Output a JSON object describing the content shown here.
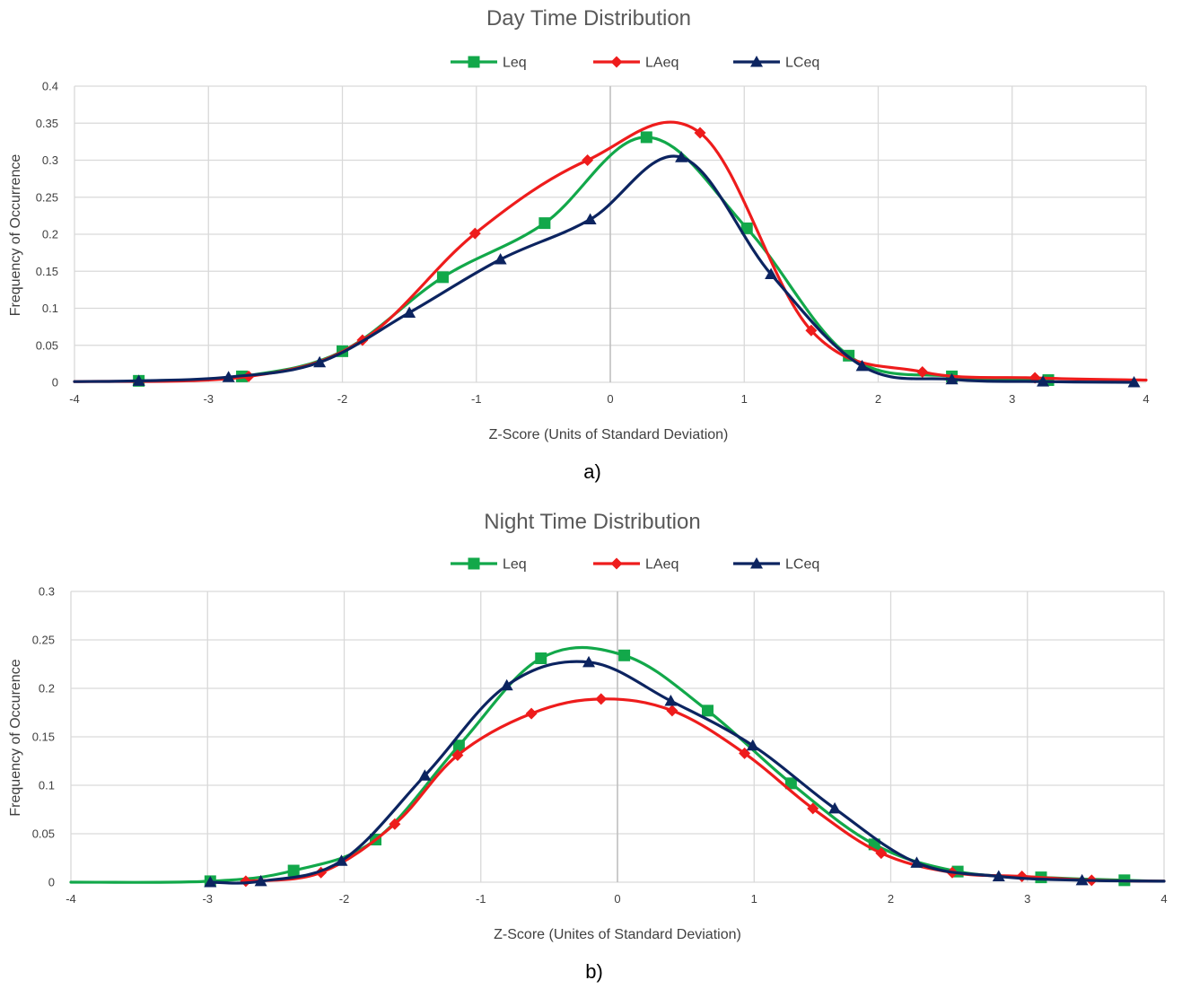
{
  "colors": {
    "Leq": "#12a84a",
    "LAeq": "#ee1c1c",
    "LCeq": "#0c2460"
  },
  "chart_data": [
    {
      "type": "line",
      "title": "Day Time Distribution",
      "xlabel": "Z-Score (Units of Standard Deviation)",
      "ylabel": "Frequency of Occurrence",
      "caption": "a)",
      "xlim": [
        -4,
        4
      ],
      "ylim": [
        0,
        0.4
      ],
      "xticks": [
        -4,
        -3,
        -2,
        -1,
        0,
        1,
        2,
        3,
        4
      ],
      "xtick_labels": [
        "-4",
        "-3",
        "-2",
        "-1",
        "0",
        "1",
        "2",
        "3",
        "4"
      ],
      "yticks": [
        0,
        0.05,
        0.1,
        0.15,
        0.2,
        0.25,
        0.3,
        0.35,
        0.4
      ],
      "ytick_labels": [
        "0",
        "0.05",
        "0.1",
        "0.15",
        "0.2",
        "0.25",
        "0.3",
        "0.35",
        "0.4"
      ],
      "grid": true,
      "legend_position": "top",
      "series": [
        {
          "name": "Leq",
          "marker": "square",
          "points": [
            [
              -3.52,
              0.002
            ],
            [
              -2.75,
              0.008
            ],
            [
              -2.0,
              0.042
            ],
            [
              -1.25,
              0.142
            ],
            [
              -0.49,
              0.215
            ],
            [
              0.27,
              0.331
            ],
            [
              1.02,
              0.208
            ],
            [
              1.78,
              0.036
            ],
            [
              2.55,
              0.008
            ],
            [
              3.27,
              0.003
            ]
          ]
        },
        {
          "name": "LAeq",
          "marker": "diamond",
          "points": [
            [
              -4.0,
              0.001
            ],
            [
              -2.7,
              0.008
            ],
            [
              -1.85,
              0.057
            ],
            [
              -1.01,
              0.201
            ],
            [
              -0.17,
              0.3
            ],
            [
              0.67,
              0.337
            ],
            [
              1.5,
              0.07
            ],
            [
              2.33,
              0.014
            ],
            [
              3.17,
              0.006
            ],
            [
              4.0,
              0.003
            ]
          ]
        },
        {
          "name": "LCeq",
          "marker": "triangle",
          "points": [
            [
              -4.0,
              0.001
            ],
            [
              -3.52,
              0.002
            ],
            [
              -2.85,
              0.007
            ],
            [
              -2.17,
              0.027
            ],
            [
              -1.5,
              0.094
            ],
            [
              -0.82,
              0.166
            ],
            [
              -0.15,
              0.22
            ],
            [
              0.53,
              0.304
            ],
            [
              1.2,
              0.146
            ],
            [
              1.88,
              0.022
            ],
            [
              2.55,
              0.004
            ],
            [
              3.23,
              0.001
            ],
            [
              3.91,
              0.0
            ]
          ]
        }
      ]
    },
    {
      "type": "line",
      "title": "Night Time Distribution",
      "xlabel": "Z-Score (Unites of Standard Deviation)",
      "ylabel": "Frequency of Occurence",
      "caption": "b)",
      "xlim": [
        -4,
        4
      ],
      "ylim": [
        0,
        0.3
      ],
      "xticks": [
        -4,
        -3,
        -2,
        -1,
        0,
        1,
        2,
        3,
        4
      ],
      "xtick_labels": [
        "-4",
        "-3",
        "-2",
        "-1",
        "0",
        "1",
        "2",
        "3",
        "4"
      ],
      "yticks": [
        0,
        0.05,
        0.1,
        0.15,
        0.2,
        0.25,
        0.3
      ],
      "ytick_labels": [
        "0",
        "0.05",
        "0.1",
        "0.15",
        "0.2",
        "0.25",
        "0.3"
      ],
      "grid": true,
      "legend_position": "top",
      "series": [
        {
          "name": "Leq",
          "marker": "square",
          "points": [
            [
              -4.0,
              0.0
            ],
            [
              -2.98,
              0.001
            ],
            [
              -2.37,
              0.012
            ],
            [
              -1.77,
              0.044
            ],
            [
              -1.16,
              0.141
            ],
            [
              -0.56,
              0.231
            ],
            [
              0.05,
              0.234
            ],
            [
              0.66,
              0.177
            ],
            [
              1.27,
              0.102
            ],
            [
              1.88,
              0.039
            ],
            [
              2.49,
              0.011
            ],
            [
              3.1,
              0.005
            ],
            [
              3.71,
              0.002
            ],
            [
              4.0,
              0.001
            ]
          ]
        },
        {
          "name": "LAeq",
          "marker": "diamond",
          "points": [
            [
              -2.72,
              0.001
            ],
            [
              -2.17,
              0.01
            ],
            [
              -1.63,
              0.06
            ],
            [
              -1.17,
              0.131
            ],
            [
              -0.63,
              0.174
            ],
            [
              -0.12,
              0.189
            ],
            [
              0.4,
              0.177
            ],
            [
              0.93,
              0.133
            ],
            [
              1.43,
              0.076
            ],
            [
              1.93,
              0.03
            ],
            [
              2.45,
              0.01
            ],
            [
              2.96,
              0.006
            ],
            [
              3.47,
              0.002
            ],
            [
              4.0,
              0.001
            ]
          ]
        },
        {
          "name": "LCeq",
          "marker": "triangle",
          "points": [
            [
              -2.98,
              0.0
            ],
            [
              -2.61,
              0.001
            ],
            [
              -2.02,
              0.022
            ],
            [
              -1.41,
              0.11
            ],
            [
              -0.81,
              0.203
            ],
            [
              -0.21,
              0.227
            ],
            [
              0.39,
              0.187
            ],
            [
              0.99,
              0.141
            ],
            [
              1.59,
              0.076
            ],
            [
              2.19,
              0.02
            ],
            [
              2.79,
              0.006
            ],
            [
              3.4,
              0.002
            ],
            [
              4.0,
              0.001
            ]
          ]
        }
      ]
    }
  ]
}
